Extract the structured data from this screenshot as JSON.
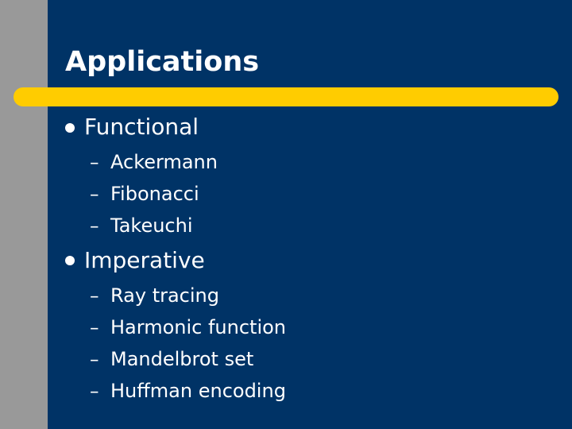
{
  "slide": {
    "title": "Applications",
    "sections": [
      {
        "label": "Functional",
        "items": [
          "Ackermann",
          "Fibonacci",
          "Takeuchi"
        ]
      },
      {
        "label": "Imperative",
        "items": [
          "Ray tracing",
          "Harmonic function",
          "Mandelbrot set",
          "Huffman encoding"
        ]
      }
    ]
  },
  "colors": {
    "background": "#003366",
    "left_band": "#999999",
    "accent_rule": "#ffcc00",
    "text": "#ffffff"
  },
  "icons": {
    "bullet": "filled-circle-bullet",
    "sub_bullet": "en-dash"
  }
}
